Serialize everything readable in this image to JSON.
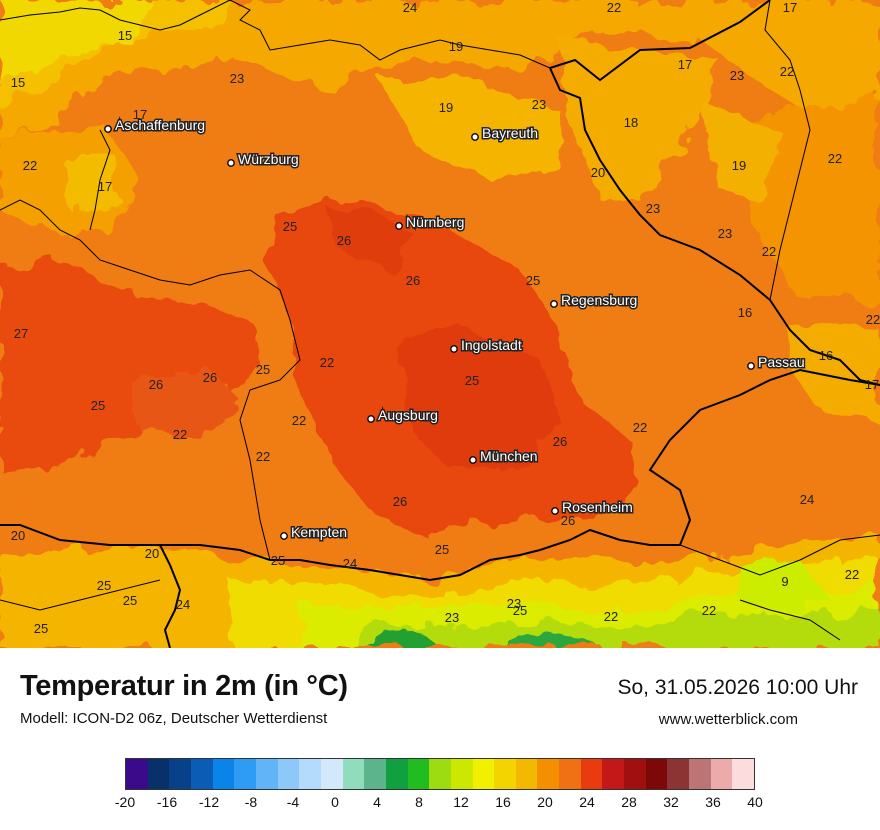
{
  "title": "Temperatur in 2m (in °C)",
  "model": "Modell: ICON-D2 06z, Deutscher Wetterdienst",
  "datetime": "So, 31.05.2026 10:00 Uhr",
  "website": "www.wetterblick.com",
  "legend": {
    "ticks": [
      "-20",
      "-16",
      "-12",
      "-8",
      "-4",
      "0",
      "4",
      "8",
      "12",
      "16",
      "20",
      "24",
      "28",
      "32",
      "36",
      "40"
    ],
    "colors": [
      "#3a0a8a",
      "#08306b",
      "#08408a",
      "#0a5cb4",
      "#0a84e8",
      "#2e9cf4",
      "#62b4f8",
      "#8ec8fa",
      "#b4dafc",
      "#d4e8fc",
      "#90dcbc",
      "#5cb48c",
      "#10a040",
      "#20bc20",
      "#9cdc10",
      "#cce800",
      "#f0f000",
      "#f4d400",
      "#f4b800",
      "#f49000",
      "#f07014",
      "#e83c10",
      "#c41818",
      "#a01010",
      "#7c0808",
      "#8c3434",
      "#bc7474",
      "#ecaaaa",
      "#fcdcdc"
    ]
  },
  "cities": [
    {
      "name": "Aschaffenburg"
    },
    {
      "name": "Würzburg"
    },
    {
      "name": "Bayreuth"
    },
    {
      "name": "Nürnberg"
    },
    {
      "name": "Regensburg"
    },
    {
      "name": "Ingolstadt"
    },
    {
      "name": "Passau"
    },
    {
      "name": "Augsburg"
    },
    {
      "name": "München"
    },
    {
      "name": "Rosenheim"
    },
    {
      "name": "Kempten"
    }
  ],
  "temperatures": [
    "24",
    "22",
    "17",
    "15",
    "15",
    "23",
    "19",
    "23",
    "22",
    "23",
    "17",
    "17",
    "17",
    "19",
    "22",
    "18",
    "19",
    "22",
    "20",
    "25",
    "26",
    "23",
    "23",
    "22",
    "26",
    "25",
    "27",
    "16",
    "22",
    "22",
    "26",
    "26",
    "25",
    "25",
    "22",
    "16",
    "17",
    "26",
    "25",
    "22",
    "22",
    "22",
    "24",
    "26",
    "24",
    "25",
    "26",
    "25",
    "20",
    "20",
    "25",
    "24",
    "9",
    "22",
    "25",
    "25",
    "25",
    "23",
    "23",
    "22",
    "22"
  ]
}
